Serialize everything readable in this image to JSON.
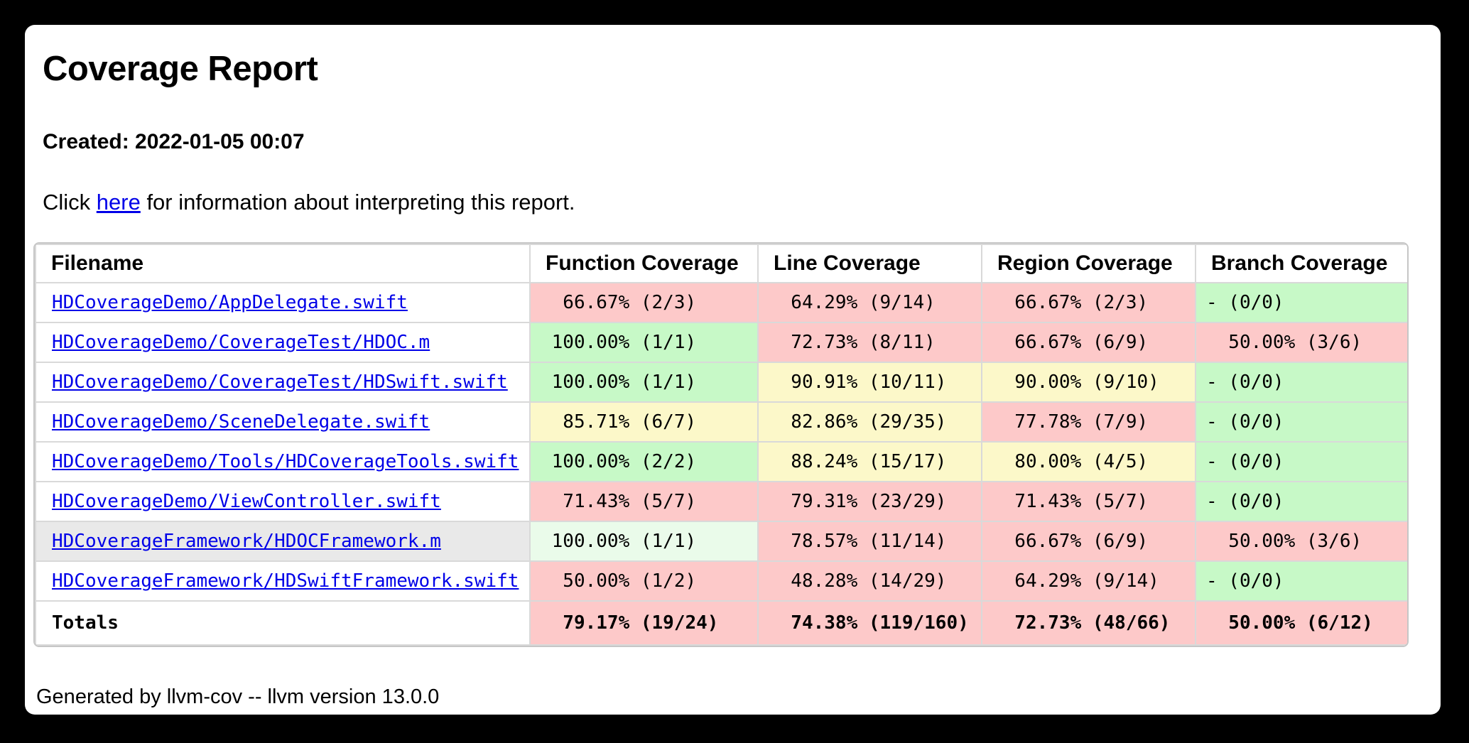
{
  "page": {
    "title": "Coverage Report",
    "created_label": "Created: 2022-01-05 00:07",
    "info_prefix": "Click ",
    "info_link_text": "here",
    "info_suffix": " for information about interpreting this report.",
    "footer": "Generated by llvm-cov -- llvm version 13.0.0"
  },
  "colors": {
    "background": "#000000",
    "card": "#ffffff",
    "link_blue": "#0000e8",
    "cell_red": "#fdc9c9",
    "cell_yellow": "#fcf8c9",
    "cell_green": "#c7f9c7",
    "cell_green_hover": "#eafbea",
    "cell_gray_hover": "#e9e9e9",
    "grid_border": "#d9d9d9"
  },
  "table": {
    "headers": [
      "Filename",
      "Function Coverage",
      "Line Coverage",
      "Region Coverage",
      "Branch Coverage"
    ],
    "rows": [
      {
        "filename": "HDCoverageDemo/AppDelegate.swift",
        "highlighted": false,
        "cells": [
          {
            "text": "  66.67% (2/3)",
            "status": "red"
          },
          {
            "text": "  64.29% (9/14)",
            "status": "red"
          },
          {
            "text": "  66.67% (2/3)",
            "status": "red"
          },
          {
            "text": "- (0/0)",
            "status": "green"
          }
        ]
      },
      {
        "filename": "HDCoverageDemo/CoverageTest/HDOC.m",
        "highlighted": false,
        "cells": [
          {
            "text": " 100.00% (1/1)",
            "status": "green"
          },
          {
            "text": "  72.73% (8/11)",
            "status": "red"
          },
          {
            "text": "  66.67% (6/9)",
            "status": "red"
          },
          {
            "text": "  50.00% (3/6)",
            "status": "red"
          }
        ]
      },
      {
        "filename": "HDCoverageDemo/CoverageTest/HDSwift.swift",
        "highlighted": false,
        "cells": [
          {
            "text": " 100.00% (1/1)",
            "status": "green"
          },
          {
            "text": "  90.91% (10/11)",
            "status": "yellow"
          },
          {
            "text": "  90.00% (9/10)",
            "status": "yellow"
          },
          {
            "text": "- (0/0)",
            "status": "green"
          }
        ]
      },
      {
        "filename": "HDCoverageDemo/SceneDelegate.swift",
        "highlighted": false,
        "cells": [
          {
            "text": "  85.71% (6/7)",
            "status": "yellow"
          },
          {
            "text": "  82.86% (29/35)",
            "status": "yellow"
          },
          {
            "text": "  77.78% (7/9)",
            "status": "red"
          },
          {
            "text": "- (0/0)",
            "status": "green"
          }
        ]
      },
      {
        "filename": "HDCoverageDemo/Tools/HDCoverageTools.swift",
        "highlighted": false,
        "cells": [
          {
            "text": " 100.00% (2/2)",
            "status": "green"
          },
          {
            "text": "  88.24% (15/17)",
            "status": "yellow"
          },
          {
            "text": "  80.00% (4/5)",
            "status": "yellow"
          },
          {
            "text": "- (0/0)",
            "status": "green"
          }
        ]
      },
      {
        "filename": "HDCoverageDemo/ViewController.swift",
        "highlighted": false,
        "cells": [
          {
            "text": "  71.43% (5/7)",
            "status": "red"
          },
          {
            "text": "  79.31% (23/29)",
            "status": "red"
          },
          {
            "text": "  71.43% (5/7)",
            "status": "red"
          },
          {
            "text": "- (0/0)",
            "status": "green"
          }
        ]
      },
      {
        "filename": "HDCoverageFramework/HDOCFramework.m",
        "highlighted": true,
        "cells": [
          {
            "text": " 100.00% (1/1)",
            "status": "green-light"
          },
          {
            "text": "  78.57% (11/14)",
            "status": "red"
          },
          {
            "text": "  66.67% (6/9)",
            "status": "red"
          },
          {
            "text": "  50.00% (3/6)",
            "status": "red"
          }
        ]
      },
      {
        "filename": "HDCoverageFramework/HDSwiftFramework.swift",
        "highlighted": false,
        "cells": [
          {
            "text": "  50.00% (1/2)",
            "status": "red"
          },
          {
            "text": "  48.28% (14/29)",
            "status": "red"
          },
          {
            "text": "  64.29% (9/14)",
            "status": "red"
          },
          {
            "text": "- (0/0)",
            "status": "green"
          }
        ]
      }
    ],
    "totals": {
      "label": "Totals",
      "cells": [
        {
          "text": "  79.17% (19/24)",
          "status": "red"
        },
        {
          "text": "  74.38% (119/160)",
          "status": "red"
        },
        {
          "text": "  72.73% (48/66)",
          "status": "red"
        },
        {
          "text": "  50.00% (6/12)",
          "status": "red"
        }
      ]
    }
  }
}
